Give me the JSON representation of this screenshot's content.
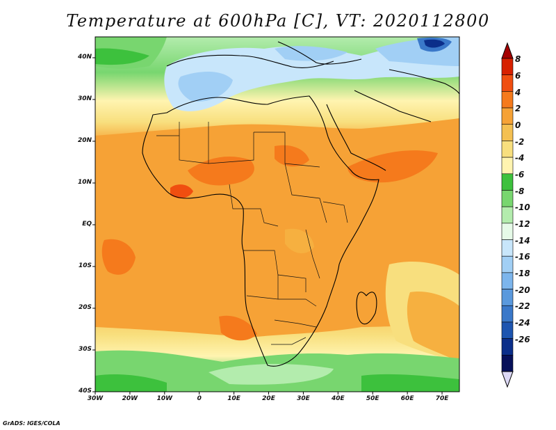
{
  "title": "Temperature at 600hPa [C], VT: 2020112800",
  "credit": "GrADS: IGES/COLA",
  "axes": {
    "lon_labels": [
      "30W",
      "20W",
      "10W",
      "0",
      "10E",
      "20E",
      "30E",
      "40E",
      "50E",
      "60E",
      "70E"
    ],
    "lon_values": [
      -30,
      -20,
      -10,
      0,
      10,
      20,
      30,
      40,
      50,
      60,
      70
    ],
    "lat_labels": [
      "40N",
      "30N",
      "20N",
      "10N",
      "EQ",
      "10S",
      "20S",
      "30S",
      "40S"
    ],
    "lat_values": [
      40,
      30,
      20,
      10,
      0,
      -10,
      -20,
      -30,
      -40
    ],
    "lon_range": [
      -30,
      75
    ],
    "lat_range": [
      -40,
      45
    ]
  },
  "colorbar": {
    "labels": [
      "8",
      "6",
      "4",
      "2",
      "0",
      "-2",
      "-4",
      "-6",
      "-8",
      "-10",
      "-12",
      "-14",
      "-16",
      "-18",
      "-20",
      "-22",
      "-24",
      "-26"
    ],
    "colors": [
      "#a50000",
      "#d72000",
      "#f04e10",
      "#f57a1c",
      "#f6a236",
      "#f4c052",
      "#f8df7e",
      "#fff4b0",
      "#3dc13d",
      "#78d66f",
      "#b3ecad",
      "#e6fae8",
      "#c8e6fb",
      "#a1cff5",
      "#7cb5ec",
      "#5a99dd",
      "#3a78c9",
      "#1d55b0",
      "#0b2e8a",
      "#07105a",
      "#dcd8f5"
    ]
  },
  "field": {
    "description_levels": "color by temperature band",
    "bands": [
      {
        "name": "cold_north_blue",
        "level_min": -16,
        "level_max": -10
      },
      {
        "name": "north_green",
        "level_min": -8,
        "level_max": -4
      },
      {
        "name": "subtropic_yellow",
        "level_min": -4,
        "level_max": 0
      },
      {
        "name": "tropical_orange",
        "level_min": 0,
        "level_max": 4
      },
      {
        "name": "hot_core",
        "level_min": 4,
        "level_max": 6
      },
      {
        "name": "south_green",
        "level_min": -8,
        "level_max": -4
      }
    ]
  }
}
